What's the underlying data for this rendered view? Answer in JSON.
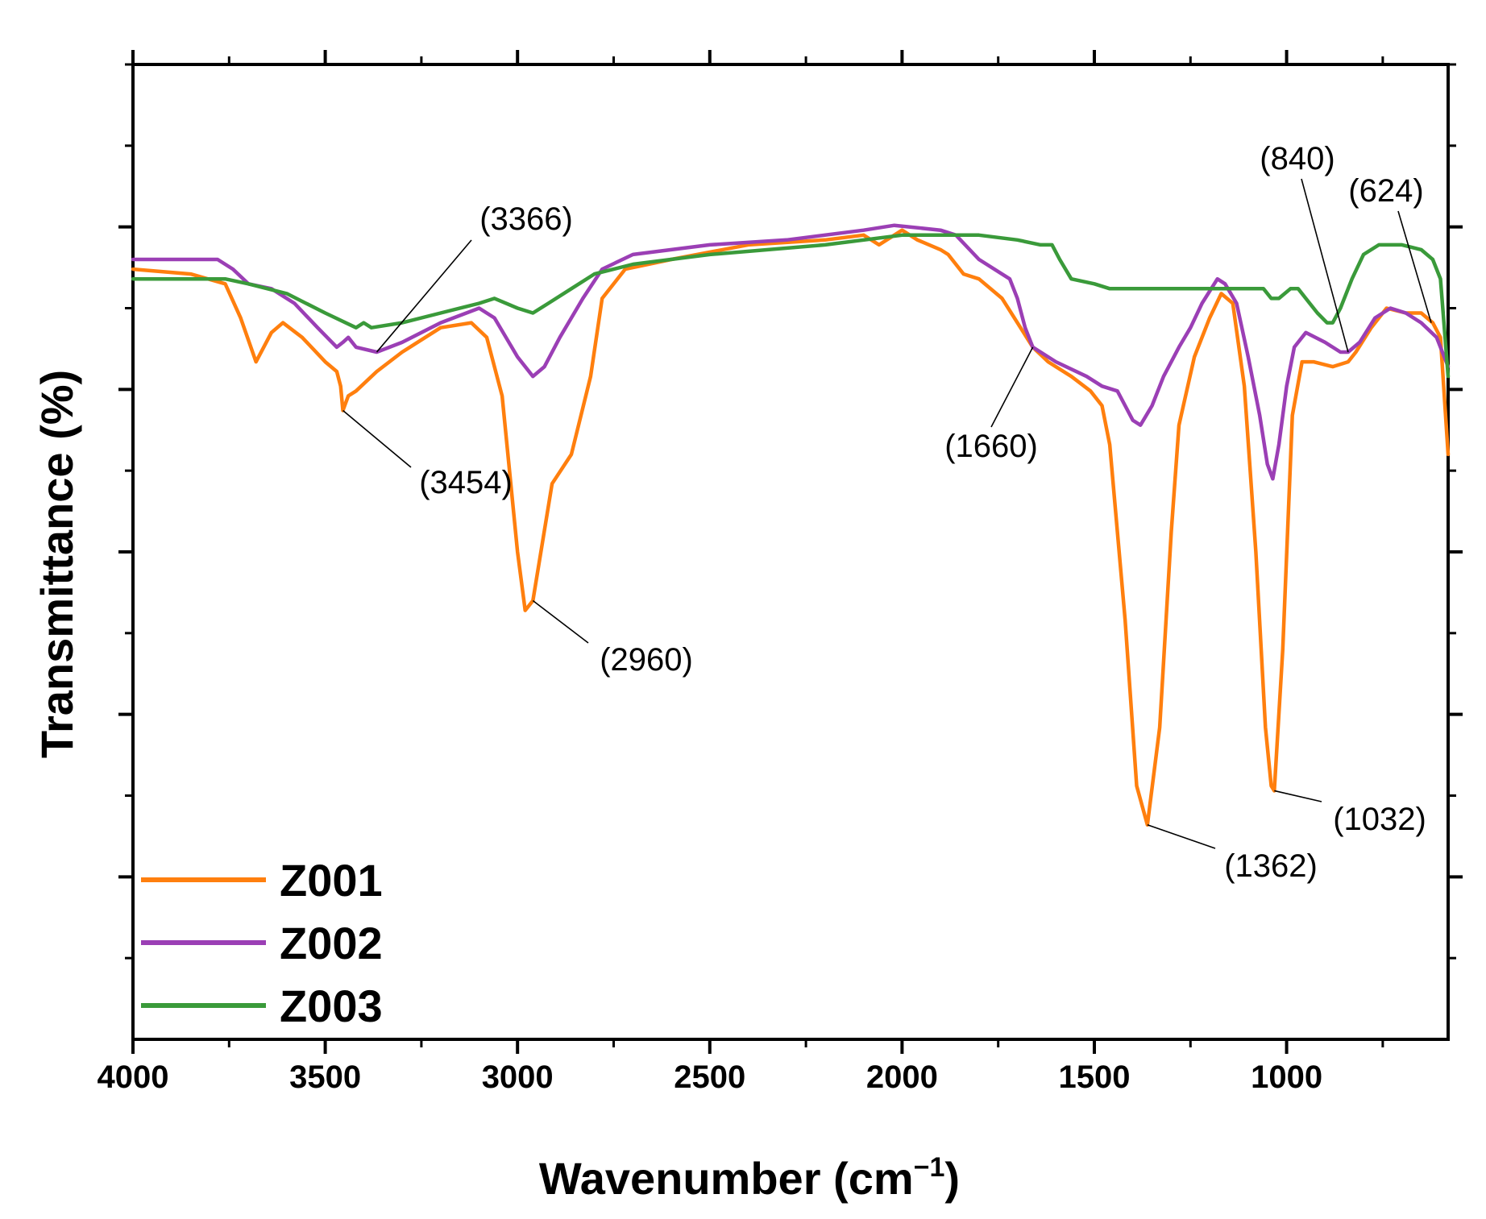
{
  "chart_data": {
    "type": "line",
    "xlabel": "Wavenumber (cm",
    "xlabel_sup": "−1",
    "xlabel_close": ")",
    "ylabel": "Transmittance (%)",
    "xlim": [
      4000,
      580
    ],
    "ylim": [
      0,
      100
    ],
    "xticks": [
      4000,
      3500,
      3000,
      2500,
      2000,
      1500,
      1000
    ],
    "xtick_labels": [
      "4000",
      "3500",
      "3000",
      "2500",
      "2000",
      "1500",
      "1000"
    ],
    "grid": false,
    "legend_position": "bottom-left",
    "series": [
      {
        "name": "Z001",
        "color": "#ff7f0e",
        "points": [
          [
            4000,
            79
          ],
          [
            3850,
            78.5
          ],
          [
            3760,
            77.5
          ],
          [
            3720,
            74
          ],
          [
            3680,
            69.5
          ],
          [
            3640,
            72.5
          ],
          [
            3610,
            73.5
          ],
          [
            3560,
            72
          ],
          [
            3500,
            69.5
          ],
          [
            3470,
            68.5
          ],
          [
            3460,
            67
          ],
          [
            3454,
            64.5
          ],
          [
            3440,
            66
          ],
          [
            3420,
            66.5
          ],
          [
            3366,
            68.5
          ],
          [
            3300,
            70.5
          ],
          [
            3200,
            73
          ],
          [
            3120,
            73.5
          ],
          [
            3080,
            72
          ],
          [
            3040,
            66
          ],
          [
            3000,
            50
          ],
          [
            2980,
            44
          ],
          [
            2960,
            45
          ],
          [
            2935,
            51
          ],
          [
            2910,
            57
          ],
          [
            2860,
            60
          ],
          [
            2810,
            68
          ],
          [
            2780,
            76
          ],
          [
            2720,
            79
          ],
          [
            2600,
            80
          ],
          [
            2400,
            81.5
          ],
          [
            2200,
            82
          ],
          [
            2100,
            82.5
          ],
          [
            2060,
            81.5
          ],
          [
            2000,
            83
          ],
          [
            1960,
            82
          ],
          [
            1900,
            81
          ],
          [
            1880,
            80.5
          ],
          [
            1840,
            78.5
          ],
          [
            1800,
            78
          ],
          [
            1740,
            76
          ],
          [
            1700,
            73.5
          ],
          [
            1660,
            71
          ],
          [
            1620,
            69.5
          ],
          [
            1560,
            68
          ],
          [
            1510,
            66.5
          ],
          [
            1480,
            65
          ],
          [
            1460,
            61
          ],
          [
            1420,
            43
          ],
          [
            1390,
            26
          ],
          [
            1362,
            22
          ],
          [
            1330,
            32
          ],
          [
            1300,
            52
          ],
          [
            1280,
            63
          ],
          [
            1240,
            70
          ],
          [
            1200,
            74
          ],
          [
            1170,
            76.5
          ],
          [
            1140,
            75.5
          ],
          [
            1110,
            67
          ],
          [
            1080,
            50
          ],
          [
            1055,
            32
          ],
          [
            1040,
            26
          ],
          [
            1032,
            25.5
          ],
          [
            1010,
            40
          ],
          [
            985,
            64
          ],
          [
            960,
            69.5
          ],
          [
            930,
            69.5
          ],
          [
            880,
            69
          ],
          [
            840,
            69.5
          ],
          [
            820,
            70.5
          ],
          [
            780,
            73
          ],
          [
            740,
            75
          ],
          [
            690,
            74.5
          ],
          [
            650,
            74.5
          ],
          [
            620,
            73.5
          ],
          [
            600,
            72
          ],
          [
            580,
            60
          ]
        ]
      },
      {
        "name": "Z002",
        "color": "#9b3fb5",
        "points": [
          [
            4000,
            80
          ],
          [
            3780,
            80
          ],
          [
            3740,
            79
          ],
          [
            3700,
            77.5
          ],
          [
            3640,
            77
          ],
          [
            3580,
            75.5
          ],
          [
            3520,
            73
          ],
          [
            3470,
            71
          ],
          [
            3454,
            71.5
          ],
          [
            3440,
            72
          ],
          [
            3420,
            71
          ],
          [
            3366,
            70.5
          ],
          [
            3300,
            71.5
          ],
          [
            3200,
            73.5
          ],
          [
            3100,
            75
          ],
          [
            3060,
            74
          ],
          [
            3000,
            70
          ],
          [
            2960,
            68
          ],
          [
            2930,
            69
          ],
          [
            2890,
            72
          ],
          [
            2860,
            74
          ],
          [
            2830,
            76
          ],
          [
            2780,
            79
          ],
          [
            2700,
            80.5
          ],
          [
            2500,
            81.5
          ],
          [
            2300,
            82
          ],
          [
            2100,
            83
          ],
          [
            2020,
            83.5
          ],
          [
            1900,
            83
          ],
          [
            1860,
            82.5
          ],
          [
            1800,
            80
          ],
          [
            1720,
            78
          ],
          [
            1700,
            76
          ],
          [
            1680,
            73
          ],
          [
            1660,
            71
          ],
          [
            1600,
            69.5
          ],
          [
            1520,
            68
          ],
          [
            1480,
            67
          ],
          [
            1440,
            66.5
          ],
          [
            1420,
            65
          ],
          [
            1400,
            63.5
          ],
          [
            1380,
            63
          ],
          [
            1350,
            65
          ],
          [
            1320,
            68
          ],
          [
            1280,
            71
          ],
          [
            1250,
            73
          ],
          [
            1220,
            75.5
          ],
          [
            1180,
            78
          ],
          [
            1160,
            77.5
          ],
          [
            1130,
            75.5
          ],
          [
            1100,
            70
          ],
          [
            1070,
            64
          ],
          [
            1050,
            59
          ],
          [
            1036,
            57.5
          ],
          [
            1020,
            61
          ],
          [
            1000,
            67
          ],
          [
            980,
            71
          ],
          [
            950,
            72.5
          ],
          [
            900,
            71.5
          ],
          [
            860,
            70.5
          ],
          [
            840,
            70.5
          ],
          [
            810,
            71.5
          ],
          [
            770,
            74
          ],
          [
            730,
            75
          ],
          [
            690,
            74.5
          ],
          [
            650,
            73.5
          ],
          [
            610,
            72
          ],
          [
            580,
            69
          ]
        ]
      },
      {
        "name": "Z003",
        "color": "#3a9a3a",
        "points": [
          [
            4000,
            78
          ],
          [
            3850,
            78
          ],
          [
            3760,
            78
          ],
          [
            3700,
            77.5
          ],
          [
            3600,
            76.5
          ],
          [
            3500,
            74.5
          ],
          [
            3420,
            73
          ],
          [
            3400,
            73.5
          ],
          [
            3380,
            73
          ],
          [
            3300,
            73.5
          ],
          [
            3200,
            74.5
          ],
          [
            3100,
            75.5
          ],
          [
            3060,
            76
          ],
          [
            3000,
            75
          ],
          [
            2960,
            74.5
          ],
          [
            2920,
            75.5
          ],
          [
            2860,
            77
          ],
          [
            2800,
            78.5
          ],
          [
            2700,
            79.5
          ],
          [
            2500,
            80.5
          ],
          [
            2200,
            81.5
          ],
          [
            2000,
            82.5
          ],
          [
            1900,
            82.5
          ],
          [
            1800,
            82.5
          ],
          [
            1700,
            82
          ],
          [
            1640,
            81.5
          ],
          [
            1610,
            81.5
          ],
          [
            1590,
            80
          ],
          [
            1560,
            78
          ],
          [
            1500,
            77.5
          ],
          [
            1460,
            77
          ],
          [
            1400,
            77
          ],
          [
            1300,
            77
          ],
          [
            1200,
            77
          ],
          [
            1100,
            77
          ],
          [
            1060,
            77
          ],
          [
            1040,
            76
          ],
          [
            1020,
            76
          ],
          [
            990,
            77
          ],
          [
            970,
            77
          ],
          [
            950,
            76
          ],
          [
            920,
            74.5
          ],
          [
            895,
            73.5
          ],
          [
            880,
            73.5
          ],
          [
            860,
            75
          ],
          [
            830,
            78
          ],
          [
            800,
            80.5
          ],
          [
            760,
            81.5
          ],
          [
            700,
            81.5
          ],
          [
            650,
            81
          ],
          [
            620,
            80
          ],
          [
            600,
            78
          ],
          [
            580,
            68
          ]
        ]
      }
    ],
    "annotations": [
      {
        "label": "(3454)",
        "series": "Z001",
        "x": 3454,
        "y": 64.5
      },
      {
        "label": "(3366)",
        "series": "Z002",
        "x": 3366,
        "y": 70.5
      },
      {
        "label": "(2960)",
        "series": "Z001",
        "x": 2960,
        "y": 45
      },
      {
        "label": "(1660)",
        "series": "Z001",
        "x": 1660,
        "y": 71
      },
      {
        "label": "(1362)",
        "series": "Z001",
        "x": 1362,
        "y": 22
      },
      {
        "label": "(1032)",
        "series": "Z001",
        "x": 1032,
        "y": 25.5
      },
      {
        "label": "(840)",
        "series": "Z002",
        "x": 840,
        "y": 70.5
      },
      {
        "label": "(624)",
        "series": "Z001",
        "x": 624,
        "y": 73.5
      }
    ]
  }
}
